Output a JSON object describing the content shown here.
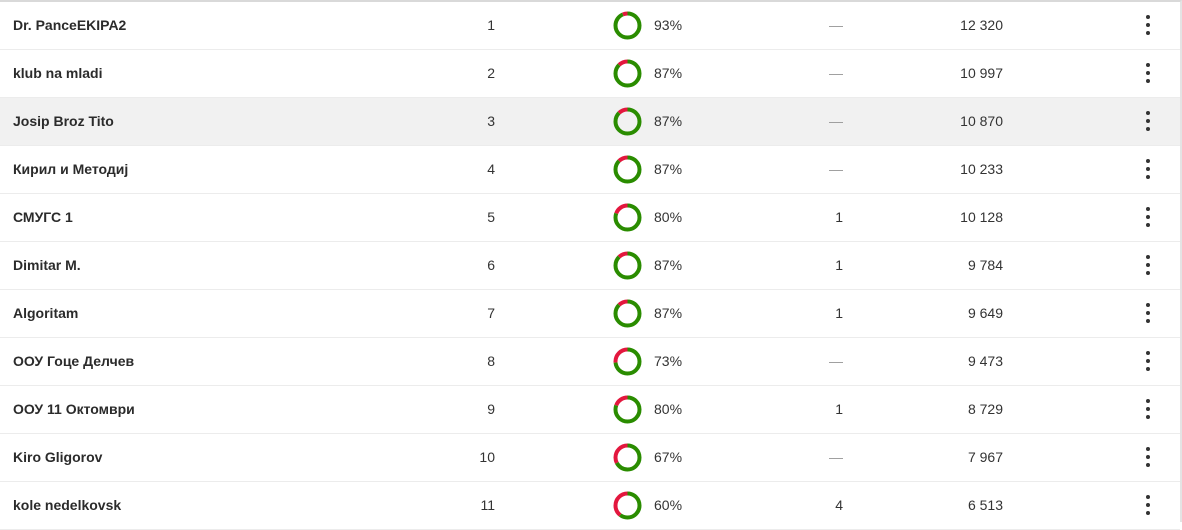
{
  "colors": {
    "correct": "#2a8c00",
    "wrong": "#e3173e"
  },
  "rows": [
    {
      "name": "Dr. PanceEKIPA2",
      "rank": "1",
      "percent": 93,
      "percent_label": "93%",
      "extra": "—",
      "score": "12 320"
    },
    {
      "name": "klub na mladi",
      "rank": "2",
      "percent": 87,
      "percent_label": "87%",
      "extra": "—",
      "score": "10 997"
    },
    {
      "name": "Josip Broz Tito",
      "rank": "3",
      "percent": 87,
      "percent_label": "87%",
      "extra": "—",
      "score": "10 870"
    },
    {
      "name": "Кирил и Методиј",
      "rank": "4",
      "percent": 87,
      "percent_label": "87%",
      "extra": "—",
      "score": "10 233"
    },
    {
      "name": "СМУГС 1",
      "rank": "5",
      "percent": 80,
      "percent_label": "80%",
      "extra": "1",
      "score": "10 128"
    },
    {
      "name": "Dimitar M.",
      "rank": "6",
      "percent": 87,
      "percent_label": "87%",
      "extra": "1",
      "score": "9 784"
    },
    {
      "name": "Algoritam",
      "rank": "7",
      "percent": 87,
      "percent_label": "87%",
      "extra": "1",
      "score": "9 649"
    },
    {
      "name": "ООУ Гоце Делчев",
      "rank": "8",
      "percent": 73,
      "percent_label": "73%",
      "extra": "—",
      "score": "9 473"
    },
    {
      "name": "ООУ 11 Октомври",
      "rank": "9",
      "percent": 80,
      "percent_label": "80%",
      "extra": "1",
      "score": "8 729"
    },
    {
      "name": "Kiro Gligorov",
      "rank": "10",
      "percent": 67,
      "percent_label": "67%",
      "extra": "—",
      "score": "7 967"
    },
    {
      "name": "kole nedelkovsk",
      "rank": "11",
      "percent": 60,
      "percent_label": "60%",
      "extra": "4",
      "score": "6 513"
    }
  ]
}
